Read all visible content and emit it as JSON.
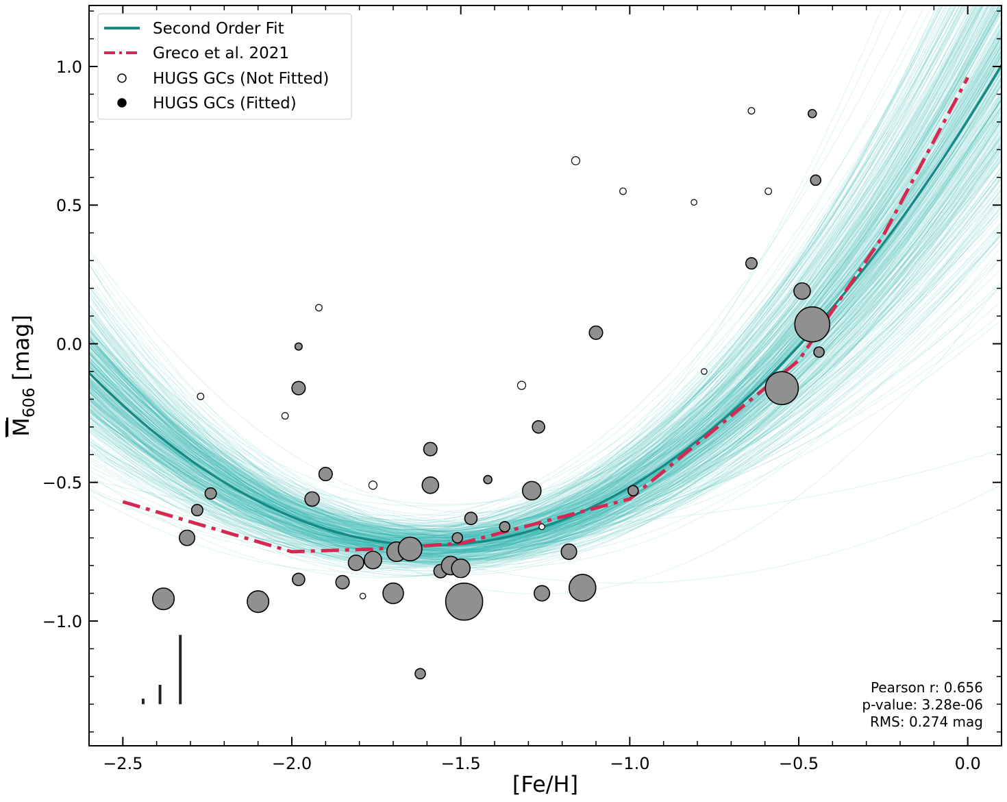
{
  "chart_data": {
    "type": "scatter",
    "xlabel": "[Fe/H]",
    "ylabel_main": "M",
    "ylabel_sub": "606",
    "ylabel_unit": " [mag]",
    "xlim": [
      -2.6,
      0.1
    ],
    "ylim": [
      -1.45,
      1.22
    ],
    "xticks": [
      -2.5,
      -2.0,
      -1.5,
      -1.0,
      -0.5,
      0.0
    ],
    "xtick_labels": [
      "−2.5",
      "−2.0",
      "−1.5",
      "−1.0",
      "−0.5",
      "0.0"
    ],
    "yticks": [
      -1.0,
      -0.5,
      0.0,
      0.5,
      1.0
    ],
    "ytick_labels": [
      "−1.0",
      "−0.5",
      "0.0",
      "0.5",
      "1.0"
    ],
    "grid": false,
    "legend_position": "top-left",
    "colors": {
      "fit": "#178a86",
      "fit_samples": "#2ab3ad",
      "greco": "#d42a52",
      "point_fill": "#909090",
      "point_edge": "#000000"
    },
    "series": [
      {
        "name": "Second Order Fit",
        "kind": "quadratic",
        "a": 0.608,
        "b": 1.931,
        "c": 0.806,
        "x_range": [
          -2.6,
          0.1
        ]
      },
      {
        "name": "Greco et al. 2021",
        "kind": "dashdot-line",
        "x": [
          -2.5,
          -2.0,
          -1.75,
          -1.5,
          -1.25,
          -1.0,
          -0.75,
          -0.5,
          -0.25,
          0.0
        ],
        "y": [
          -0.57,
          -0.75,
          -0.74,
          -0.72,
          -0.64,
          -0.56,
          -0.31,
          -0.06,
          0.39,
          0.96
        ]
      },
      {
        "name": "HUGS GCs (Not Fitted)",
        "kind": "open-circles",
        "points": [
          [
            -2.27,
            -0.19,
            0.8
          ],
          [
            -2.02,
            -0.26,
            0.8
          ],
          [
            -1.92,
            0.13,
            0.8
          ],
          [
            -1.76,
            -0.51,
            1.0
          ],
          [
            -1.79,
            -0.91,
            0.7
          ],
          [
            -1.32,
            -0.15,
            1.0
          ],
          [
            -1.26,
            -0.66,
            0.7
          ],
          [
            -1.16,
            0.66,
            1.0
          ],
          [
            -1.02,
            0.55,
            0.8
          ],
          [
            -0.81,
            0.51,
            0.7
          ],
          [
            -0.78,
            -0.1,
            0.7
          ],
          [
            -0.64,
            0.84,
            0.8
          ],
          [
            -0.59,
            0.55,
            0.8
          ]
        ]
      },
      {
        "name": "HUGS GCs (Fitted)",
        "kind": "filled-circles",
        "points": [
          [
            -2.38,
            -0.92,
            2.1
          ],
          [
            -2.31,
            -0.7,
            1.5
          ],
          [
            -2.28,
            -0.6,
            1.1
          ],
          [
            -2.24,
            -0.54,
            1.1
          ],
          [
            -2.1,
            -0.93,
            2.1
          ],
          [
            -1.98,
            -0.16,
            1.3
          ],
          [
            -1.98,
            -0.85,
            1.2
          ],
          [
            -1.98,
            -0.01,
            0.7
          ],
          [
            -1.94,
            -0.56,
            1.4
          ],
          [
            -1.9,
            -0.47,
            1.3
          ],
          [
            -1.85,
            -0.86,
            1.3
          ],
          [
            -1.81,
            -0.79,
            1.5
          ],
          [
            -1.76,
            -0.78,
            1.7
          ],
          [
            -1.7,
            -0.9,
            2.0
          ],
          [
            -1.69,
            -0.75,
            1.9
          ],
          [
            -1.65,
            -0.74,
            2.3
          ],
          [
            -1.62,
            -1.19,
            1.0
          ],
          [
            -1.59,
            -0.51,
            1.6
          ],
          [
            -1.59,
            -0.38,
            1.3
          ],
          [
            -1.56,
            -0.82,
            1.3
          ],
          [
            -1.53,
            -0.8,
            1.8
          ],
          [
            -1.5,
            -0.81,
            1.8
          ],
          [
            -1.51,
            -0.7,
            1.0
          ],
          [
            -1.49,
            -0.93,
            3.6
          ],
          [
            -1.47,
            -0.63,
            1.2
          ],
          [
            -1.42,
            -0.49,
            0.8
          ],
          [
            -1.37,
            -0.66,
            1.0
          ],
          [
            -1.29,
            -0.53,
            1.8
          ],
          [
            -1.27,
            -0.3,
            1.2
          ],
          [
            -1.26,
            -0.9,
            1.5
          ],
          [
            -1.18,
            -0.75,
            1.5
          ],
          [
            -1.14,
            -0.88,
            2.6
          ],
          [
            -1.1,
            0.04,
            1.3
          ],
          [
            -0.99,
            -0.53,
            1.0
          ],
          [
            -0.64,
            0.29,
            1.1
          ],
          [
            -0.55,
            -0.16,
            3.2
          ],
          [
            -0.49,
            0.19,
            1.6
          ],
          [
            -0.46,
            0.07,
            3.4
          ],
          [
            -0.46,
            0.83,
            0.8
          ],
          [
            -0.45,
            0.59,
            1.0
          ],
          [
            -0.44,
            -0.03,
            1.0
          ]
        ]
      }
    ],
    "errorbars": [
      {
        "x": -2.44,
        "y_low": -1.3,
        "y_high": -1.28
      },
      {
        "x": -2.39,
        "y_low": -1.3,
        "y_high": -1.23
      },
      {
        "x": -2.33,
        "y_low": -1.3,
        "y_high": -1.05
      }
    ],
    "legend": [
      {
        "label": "Second Order Fit",
        "marker": "line"
      },
      {
        "label": "Greco et al. 2021",
        "marker": "dashdot"
      },
      {
        "label": "HUGS GCs (Not Fitted)",
        "marker": "open-circle"
      },
      {
        "label": "HUGS GCs (Fitted)",
        "marker": "filled-circle"
      }
    ],
    "stats": [
      "Pearson r: 0.656",
      "p-value: 3.28e-06",
      "RMS: 0.274 mag"
    ]
  }
}
